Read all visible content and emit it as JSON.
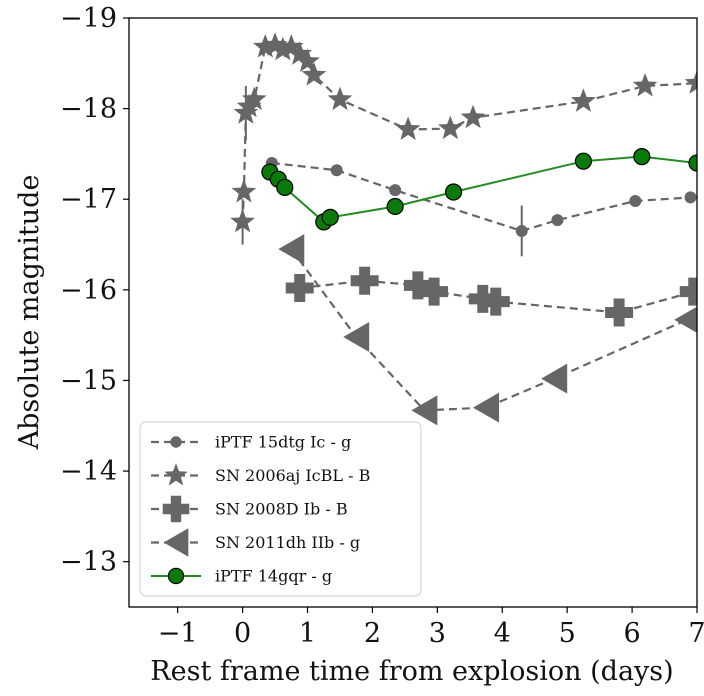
{
  "chart_data": {
    "type": "line",
    "title": "",
    "xlabel": "Rest frame time from explosion (days)",
    "ylabel": "Absolute magnitude",
    "xlim": [
      -1.75,
      7
    ],
    "ylim": [
      -12.5,
      -19
    ],
    "y_inverted": true,
    "x_ticks": [
      -1,
      0,
      1,
      2,
      3,
      4,
      5,
      6,
      7
    ],
    "x_tick_labels": [
      "−1",
      "0",
      "1",
      "2",
      "3",
      "4",
      "5",
      "6",
      "7"
    ],
    "y_ticks": [
      -19,
      -18,
      -17,
      -16,
      -15,
      -14,
      -13
    ],
    "y_tick_labels": [
      "−19",
      "−18",
      "−17",
      "−16",
      "−15",
      "−14",
      "−13"
    ],
    "grid": false,
    "legend_position": "bottom-left",
    "series": [
      {
        "name": "iPTF 15dtg Ic - g",
        "marker": "circle-small",
        "line_style": "dashed",
        "color": "#666666",
        "x": [
          0.45,
          1.45,
          2.35,
          4.3,
          4.85,
          6.05,
          6.9
        ],
        "y": [
          -17.4,
          -17.32,
          -17.1,
          -16.65,
          -16.77,
          -16.98,
          -17.02
        ],
        "yerr": [
          0,
          0,
          0,
          0.28,
          0.05,
          0.04,
          0.04
        ]
      },
      {
        "name": "SN 2006aj IcBL - B",
        "marker": "star",
        "line_style": "dashed",
        "color": "#666666",
        "x": [
          0.0,
          0.02,
          0.05,
          0.1,
          0.18,
          0.35,
          0.5,
          0.62,
          0.75,
          0.88,
          1.0,
          1.1,
          1.5,
          2.55,
          3.2,
          3.55,
          5.25,
          6.2,
          7.0
        ],
        "y": [
          -16.75,
          -17.08,
          -17.95,
          -18.02,
          -18.1,
          -18.68,
          -18.7,
          -18.65,
          -18.68,
          -18.6,
          -18.52,
          -18.37,
          -18.1,
          -17.77,
          -17.78,
          -17.9,
          -18.08,
          -18.25,
          -18.28
        ],
        "yerr": [
          0.25,
          0,
          0.3,
          0,
          0,
          0,
          0,
          0,
          0,
          0,
          0,
          0,
          0,
          0,
          0,
          0,
          0,
          0,
          0
        ]
      },
      {
        "name": "SN 2008D Ib - B",
        "marker": "plus",
        "line_style": "dashed",
        "color": "#666666",
        "x": [
          0.88,
          1.88,
          2.7,
          2.95,
          3.7,
          3.9,
          5.8,
          6.95
        ],
        "y": [
          -16.02,
          -16.1,
          -16.05,
          -15.98,
          -15.9,
          -15.87,
          -15.75,
          -15.98
        ]
      },
      {
        "name": "SN 2011dh IIb - g",
        "marker": "triangle-left",
        "line_style": "dashed",
        "color": "#666666",
        "x": [
          0.75,
          1.75,
          2.8,
          3.75,
          4.8,
          6.85
        ],
        "y": [
          -16.45,
          -15.48,
          -14.67,
          -14.7,
          -15.02,
          -15.67
        ]
      },
      {
        "name": "iPTF 14gqr - g",
        "marker": "circle",
        "line_style": "solid",
        "color": "#228b22",
        "marker_color": "#0a7a0a",
        "x": [
          0.42,
          0.55,
          0.65,
          1.25,
          1.35,
          2.35,
          3.25,
          5.25,
          6.15,
          7.0
        ],
        "y": [
          -17.3,
          -17.22,
          -17.13,
          -16.75,
          -16.8,
          -16.92,
          -17.08,
          -17.42,
          -17.47,
          -17.4
        ]
      }
    ]
  }
}
